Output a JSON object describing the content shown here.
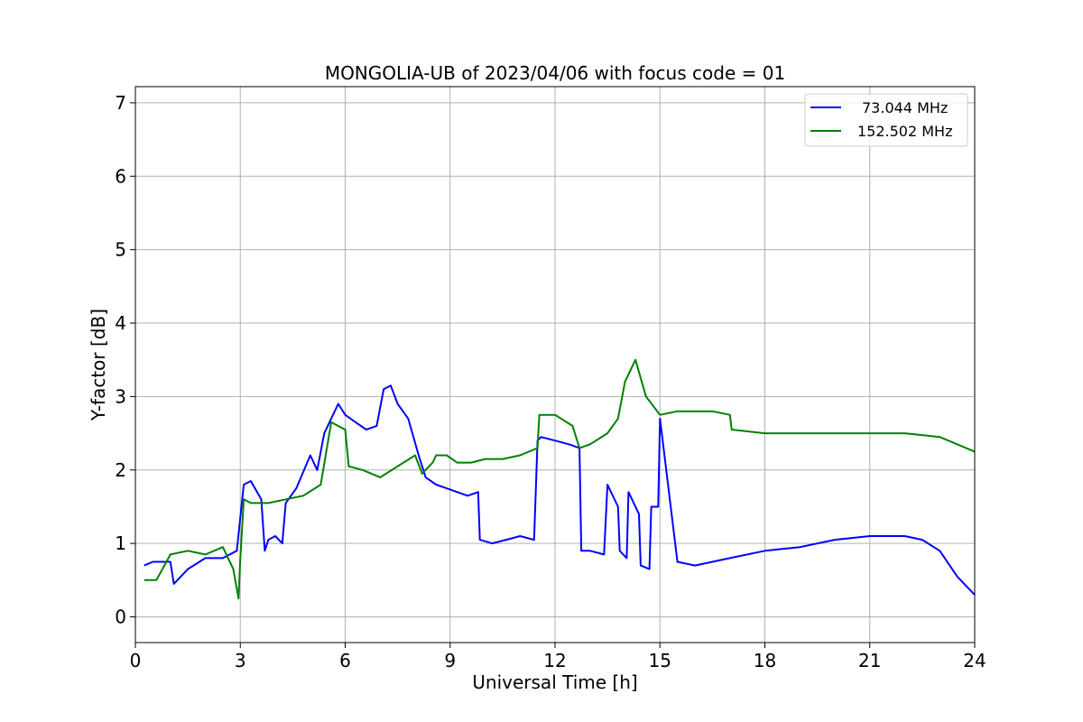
{
  "chart_data": {
    "type": "line",
    "title": "MONGOLIA-UB of 2023/04/06 with focus code = 01",
    "xlabel": "Universal Time [h]",
    "ylabel": "Y-factor [dB]",
    "xlim": [
      0,
      24
    ],
    "ylim": [
      -0.35,
      7.22
    ],
    "xticks": [
      0,
      3,
      6,
      9,
      12,
      15,
      18,
      21,
      24
    ],
    "yticks": [
      0,
      1,
      2,
      3,
      4,
      5,
      6,
      7
    ],
    "grid": true,
    "legend": "top-right",
    "series": [
      {
        "name": "73.044 MHz",
        "color": "#0000ff",
        "x": [
          0.25,
          0.5,
          1.0,
          1.1,
          1.3,
          1.5,
          2.0,
          2.5,
          2.9,
          3.1,
          3.3,
          3.6,
          3.7,
          3.8,
          4.0,
          4.2,
          4.3,
          4.6,
          5.0,
          5.2,
          5.4,
          5.6,
          5.8,
          6.0,
          6.3,
          6.6,
          6.9,
          7.1,
          7.3,
          7.5,
          7.8,
          8.1,
          8.3,
          8.6,
          8.9,
          9.2,
          9.5,
          9.8,
          9.85,
          10.2,
          10.6,
          11.0,
          11.4,
          11.5,
          11.6,
          12.0,
          12.4,
          12.7,
          12.75,
          13.0,
          13.4,
          13.5,
          13.8,
          13.85,
          14.05,
          14.1,
          14.4,
          14.45,
          14.7,
          14.75,
          14.95,
          15.0,
          15.5,
          16.0,
          17.0,
          18.0,
          19.0,
          20.0,
          21.0,
          22.0,
          22.5,
          23.0,
          23.5,
          24.0
        ],
        "values": [
          0.7,
          0.75,
          0.75,
          0.45,
          0.55,
          0.65,
          0.8,
          0.8,
          0.9,
          1.8,
          1.85,
          1.6,
          0.9,
          1.05,
          1.1,
          1.0,
          1.55,
          1.75,
          2.2,
          2.0,
          2.5,
          2.7,
          2.9,
          2.75,
          2.65,
          2.55,
          2.6,
          3.1,
          3.15,
          2.9,
          2.7,
          2.2,
          1.9,
          1.8,
          1.75,
          1.7,
          1.65,
          1.7,
          1.05,
          1.0,
          1.05,
          1.1,
          1.05,
          2.4,
          2.45,
          2.4,
          2.35,
          2.3,
          0.9,
          0.9,
          0.85,
          1.8,
          1.5,
          0.9,
          0.8,
          1.7,
          1.4,
          0.7,
          0.65,
          1.5,
          1.5,
          2.7,
          0.75,
          0.7,
          0.8,
          0.9,
          0.95,
          1.05,
          1.1,
          1.1,
          1.05,
          0.9,
          0.55,
          0.3
        ]
      },
      {
        "name": "152.502 MHz",
        "color": "#008000",
        "x": [
          0.25,
          0.6,
          1.0,
          1.5,
          2.0,
          2.5,
          2.8,
          2.95,
          3.0,
          3.1,
          3.3,
          3.8,
          4.3,
          4.8,
          5.3,
          5.6,
          6.0,
          6.1,
          6.5,
          7.0,
          7.5,
          8.0,
          8.2,
          8.5,
          8.6,
          8.9,
          9.2,
          9.6,
          10.0,
          10.5,
          11.0,
          11.5,
          11.55,
          12.0,
          12.5,
          12.7,
          13.0,
          13.5,
          13.8,
          14.0,
          14.3,
          14.6,
          15.0,
          15.5,
          16.0,
          16.5,
          17.0,
          17.05,
          18.0,
          19.0,
          20.0,
          21.0,
          22.0,
          23.0,
          23.5,
          24.0
        ],
        "values": [
          0.5,
          0.5,
          0.85,
          0.9,
          0.85,
          0.95,
          0.65,
          0.25,
          0.8,
          1.6,
          1.55,
          1.55,
          1.6,
          1.65,
          1.8,
          2.65,
          2.55,
          2.05,
          2.0,
          1.9,
          2.05,
          2.2,
          1.95,
          2.1,
          2.2,
          2.2,
          2.1,
          2.1,
          2.15,
          2.15,
          2.2,
          2.3,
          2.75,
          2.75,
          2.6,
          2.3,
          2.35,
          2.5,
          2.7,
          3.2,
          3.5,
          3.0,
          2.75,
          2.8,
          2.8,
          2.8,
          2.75,
          2.55,
          2.5,
          2.5,
          2.5,
          2.5,
          2.5,
          2.45,
          2.35,
          2.25
        ]
      }
    ]
  }
}
